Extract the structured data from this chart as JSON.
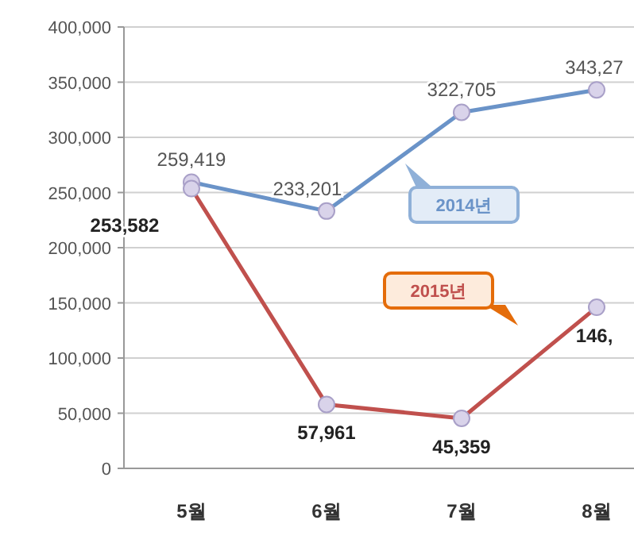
{
  "chart_data": {
    "type": "line",
    "categories": [
      "5월",
      "6월",
      "7월",
      "8월"
    ],
    "series": [
      {
        "name": "2014년",
        "color": "#6a93c8",
        "values": [
          259419,
          233201,
          322705,
          343000
        ],
        "value_labels": [
          "259,419",
          "233,201",
          "322,705",
          null
        ]
      },
      {
        "name": "2015년",
        "color": "#c0504d",
        "values": [
          253582,
          57961,
          45359,
          146000
        ],
        "value_labels": [
          "253,582",
          "57,961",
          "45,359",
          null
        ]
      }
    ],
    "annotations": [
      "343,27",
      "146,"
    ],
    "ylim": [
      0,
      400000
    ],
    "yticks": [
      {
        "value": 0,
        "label": "0"
      },
      {
        "value": 50000,
        "label": "50,000"
      },
      {
        "value": 100000,
        "label": "100,000"
      },
      {
        "value": 150000,
        "label": "150,000"
      },
      {
        "value": 200000,
        "label": "200,000"
      },
      {
        "value": 250000,
        "label": "250,000"
      },
      {
        "value": 300000,
        "label": "300,000"
      },
      {
        "value": 350000,
        "label": "350,000"
      },
      {
        "value": 400000,
        "label": "400,000"
      }
    ],
    "grid": "y",
    "marker": "circle",
    "line_style": "solid",
    "legend": false
  }
}
